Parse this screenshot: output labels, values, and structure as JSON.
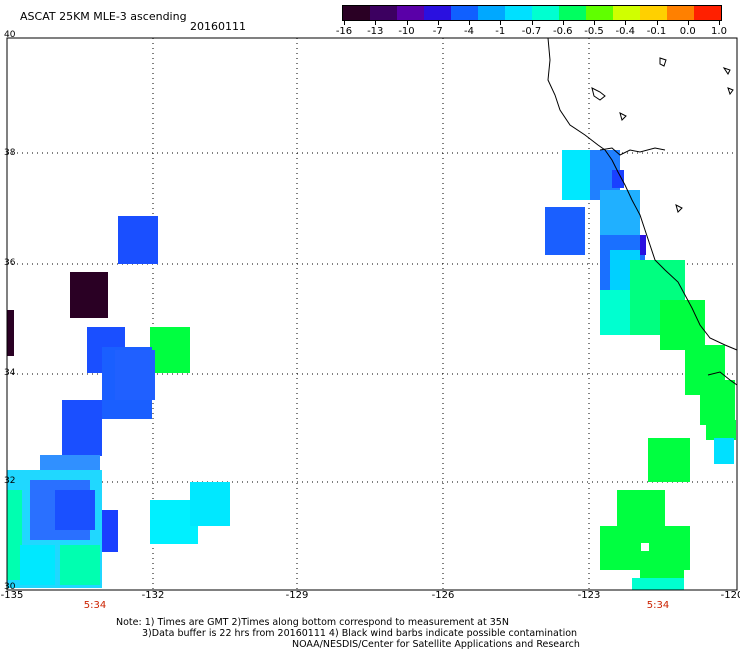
{
  "header": {
    "title": "ASCAT 25KM MLE-3 ascending",
    "date": "20160111"
  },
  "colorbar": {
    "labels": [
      "-16",
      "-13",
      "-10",
      "-7",
      "-4",
      "-1",
      "-0.7",
      "-0.6",
      "-0.5",
      "-0.4",
      "-0.1",
      "0.0",
      "1.0"
    ],
    "colors": [
      "#2a0024",
      "#3c0060",
      "#5a00a8",
      "#2a10e0",
      "#1060ff",
      "#00a8ff",
      "#00e0ff",
      "#00ffd0",
      "#00ff60",
      "#60ff00",
      "#d0ff00",
      "#ffd000",
      "#ff8000",
      "#ff2000"
    ]
  },
  "axes": {
    "lat_labels": [
      "40",
      "38",
      "36",
      "34",
      "32",
      "30"
    ],
    "lon_labels": [
      "-135",
      "-132",
      "-129",
      "-126",
      "-123",
      "-120"
    ],
    "time_labels": [
      "5:34",
      "5:34"
    ]
  },
  "notes": {
    "line1": "Note: 1) Times are GMT 2)Times along bottom correspond to measurement at 35N",
    "line2": "3)Data buffer is 22 hrs from 20160111 4) Black wind barbs indicate possible contamination",
    "line3": "NOAA/NESDIS/Center for Satellite Applications and Research"
  }
}
